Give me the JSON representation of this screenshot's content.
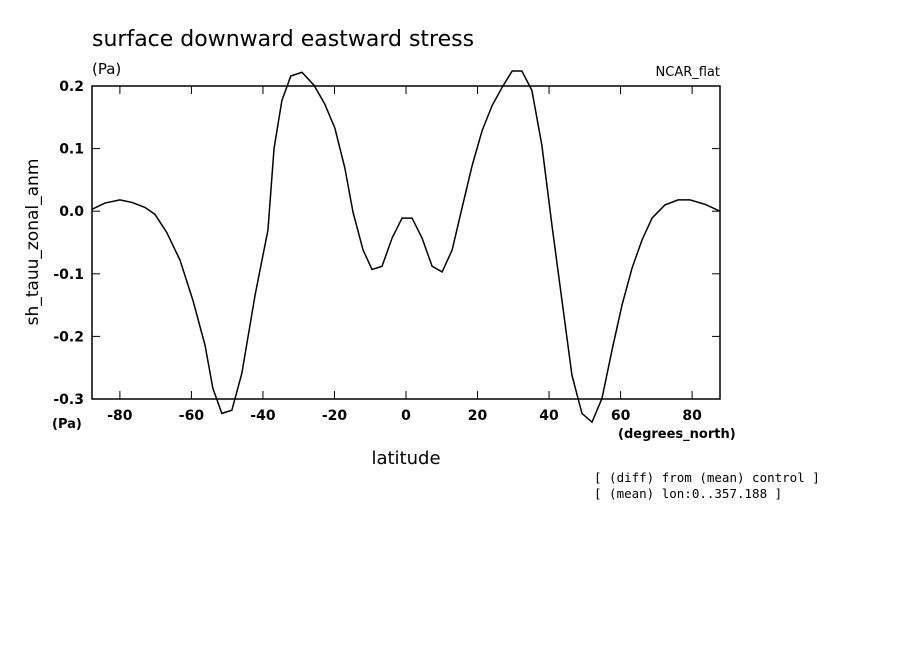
{
  "chart_data": {
    "type": "line",
    "title": "surface downward eastward stress",
    "y_units_top": "(Pa)",
    "dataset": "NCAR_flat",
    "ylabel": "sh_tauu_zonal_anm",
    "y_units_bottom": "(Pa)",
    "x_units": "(degrees_north)",
    "xlabel": "latitude",
    "notes": [
      "[ (diff) from (mean) control ]",
      "[ (mean) lon:0..357.188 ]"
    ],
    "x": [
      -87.8,
      -84.2,
      -80,
      -76.6,
      -73,
      -70.2,
      -66.9,
      -63.2,
      -59.6,
      -56.2,
      -54,
      -51.5,
      -48.7,
      -45.9,
      -42.2,
      -38.6,
      -36.9,
      -34.7,
      -32.2,
      -29.1,
      -25.7,
      -22.7,
      -19.9,
      -17.1,
      -14.8,
      -12,
      -9.5,
      -6.7,
      -3.9,
      -1.1,
      1.7,
      4.5,
      7.3,
      10.1,
      12.9,
      15.7,
      18.5,
      21.3,
      24.1,
      26.9,
      29.7,
      32.4,
      35.2,
      38,
      40.8,
      43.6,
      46.4,
      49.2,
      52,
      54.8,
      57.6,
      60.4,
      63.2,
      66,
      68.8,
      72.4,
      76.1,
      79.4,
      83.6,
      87.8
    ],
    "series": [
      {
        "color": "#000000",
        "values": [
          0.003,
          0.013,
          0.018,
          0.014,
          0.006,
          -0.005,
          -0.034,
          -0.078,
          -0.142,
          -0.214,
          -0.283,
          -0.323,
          -0.318,
          -0.259,
          -0.134,
          -0.03,
          0.1,
          0.177,
          0.216,
          0.222,
          0.201,
          0.171,
          0.133,
          0.069,
          -0.002,
          -0.062,
          -0.093,
          -0.088,
          -0.043,
          -0.011,
          -0.011,
          -0.043,
          -0.088,
          -0.097,
          -0.062,
          0.006,
          0.073,
          0.129,
          0.169,
          0.198,
          0.224,
          0.224,
          0.193,
          0.105,
          -0.022,
          -0.142,
          -0.262,
          -0.323,
          -0.337,
          -0.299,
          -0.222,
          -0.15,
          -0.091,
          -0.046,
          -0.011,
          0.01,
          0.018,
          0.018,
          0.011,
          0.0
        ]
      }
    ],
    "xlim": [
      -87.8,
      87.8
    ],
    "ylim": [
      -0.3,
      0.2
    ],
    "xticks": [
      -80,
      -60,
      -40,
      -20,
      0,
      20,
      40,
      60,
      80
    ],
    "yticks": [
      -0.3,
      -0.2,
      -0.1,
      {
        "value": 0,
        "label": "0.0"
      },
      0.1,
      0.2
    ]
  }
}
